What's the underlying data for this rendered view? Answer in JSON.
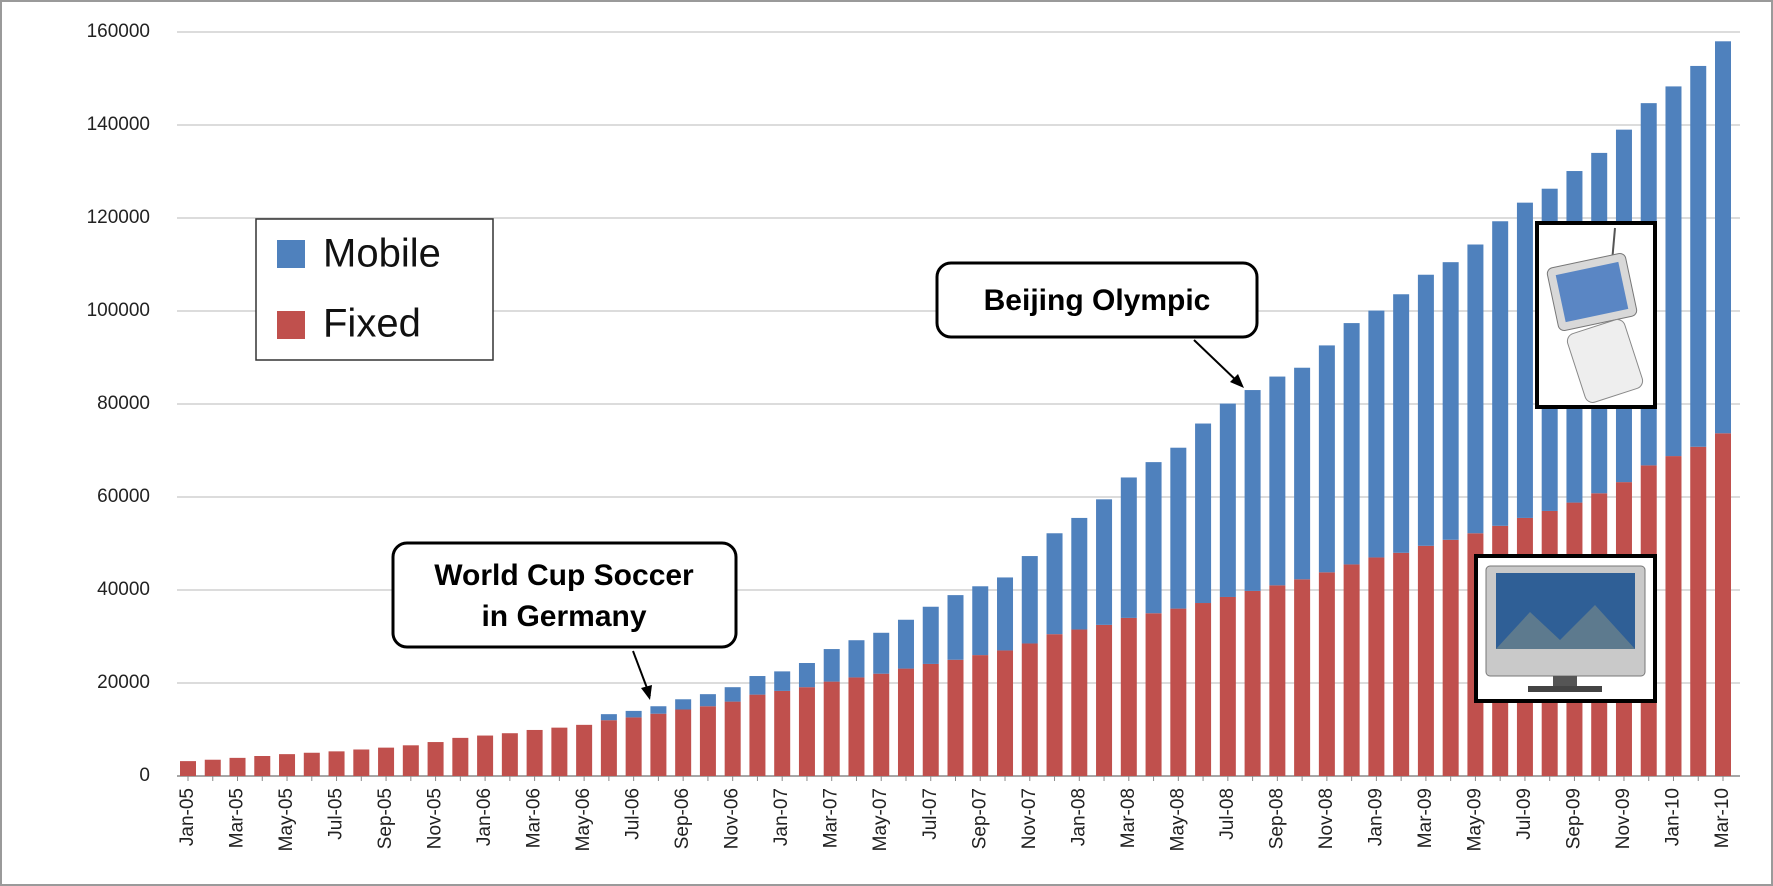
{
  "chart_data": {
    "type": "stacked_bar",
    "categories": [
      "Jan-05",
      null,
      "Mar-05",
      null,
      "May-05",
      null,
      "Jul-05",
      null,
      "Sep-05",
      null,
      "Nov-05",
      null,
      "Jan-06",
      null,
      "Mar-06",
      null,
      "May-06",
      null,
      "Jul-06",
      null,
      "Sep-06",
      null,
      "Nov-06",
      null,
      "Jan-07",
      null,
      "Mar-07",
      null,
      "May-07",
      null,
      "Jul-07",
      null,
      "Sep-07",
      null,
      "Nov-07",
      null,
      "Jan-08",
      null,
      "Mar-08",
      null,
      "May-08",
      null,
      "Jul-08",
      null,
      "Sep-08",
      null,
      "Nov-08",
      null,
      "Jan-09",
      null,
      "Mar-09",
      null,
      "May-09",
      null,
      "Jul-09",
      null,
      "Sep-09",
      null,
      "Nov-09",
      null,
      "Jan-10",
      null,
      "Mar-10"
    ],
    "series": [
      {
        "name": "Mobile",
        "color": "#4f81bd",
        "values": [
          0,
          0,
          0,
          0,
          0,
          0,
          0,
          0,
          0,
          0,
          0,
          0,
          0,
          0,
          0,
          0,
          0,
          1300,
          1400,
          1600,
          2200,
          2600,
          3100,
          4000,
          4200,
          5200,
          7000,
          8000,
          8800,
          10500,
          12300,
          13900,
          14800,
          15700,
          18800,
          21700,
          24000,
          27000,
          30200,
          32500,
          34600,
          38600,
          41600,
          43200,
          44900,
          45500,
          48800,
          51900,
          53100,
          55600,
          58300,
          59700,
          62100,
          65500,
          67800,
          69300,
          71300,
          73200,
          75800,
          77900,
          79500,
          81900,
          84300
        ]
      },
      {
        "name": "Fixed",
        "color": "#c0504d",
        "values": [
          3200,
          3500,
          3900,
          4300,
          4700,
          5000,
          5300,
          5700,
          6100,
          6600,
          7300,
          8200,
          8700,
          9200,
          9900,
          10400,
          11000,
          12000,
          12600,
          13400,
          14300,
          15000,
          16000,
          17500,
          18300,
          19100,
          20300,
          21200,
          22000,
          23100,
          24100,
          25000,
          26000,
          27000,
          28500,
          30500,
          31500,
          32500,
          34000,
          35000,
          36000,
          37200,
          38500,
          39800,
          41000,
          42300,
          43800,
          45500,
          47000,
          48000,
          49500,
          50800,
          52200,
          53800,
          55500,
          57000,
          58800,
          60800,
          63200,
          66800,
          68800,
          70800,
          73700
        ]
      }
    ],
    "ylim": [
      0,
      160000
    ],
    "yticks": [
      0,
      20000,
      40000,
      60000,
      80000,
      100000,
      120000,
      140000,
      160000
    ],
    "grid": true,
    "annotations": [
      [
        "World Cup Soccer",
        "in Germany"
      ],
      [
        "Beijing Olympic"
      ]
    ]
  }
}
